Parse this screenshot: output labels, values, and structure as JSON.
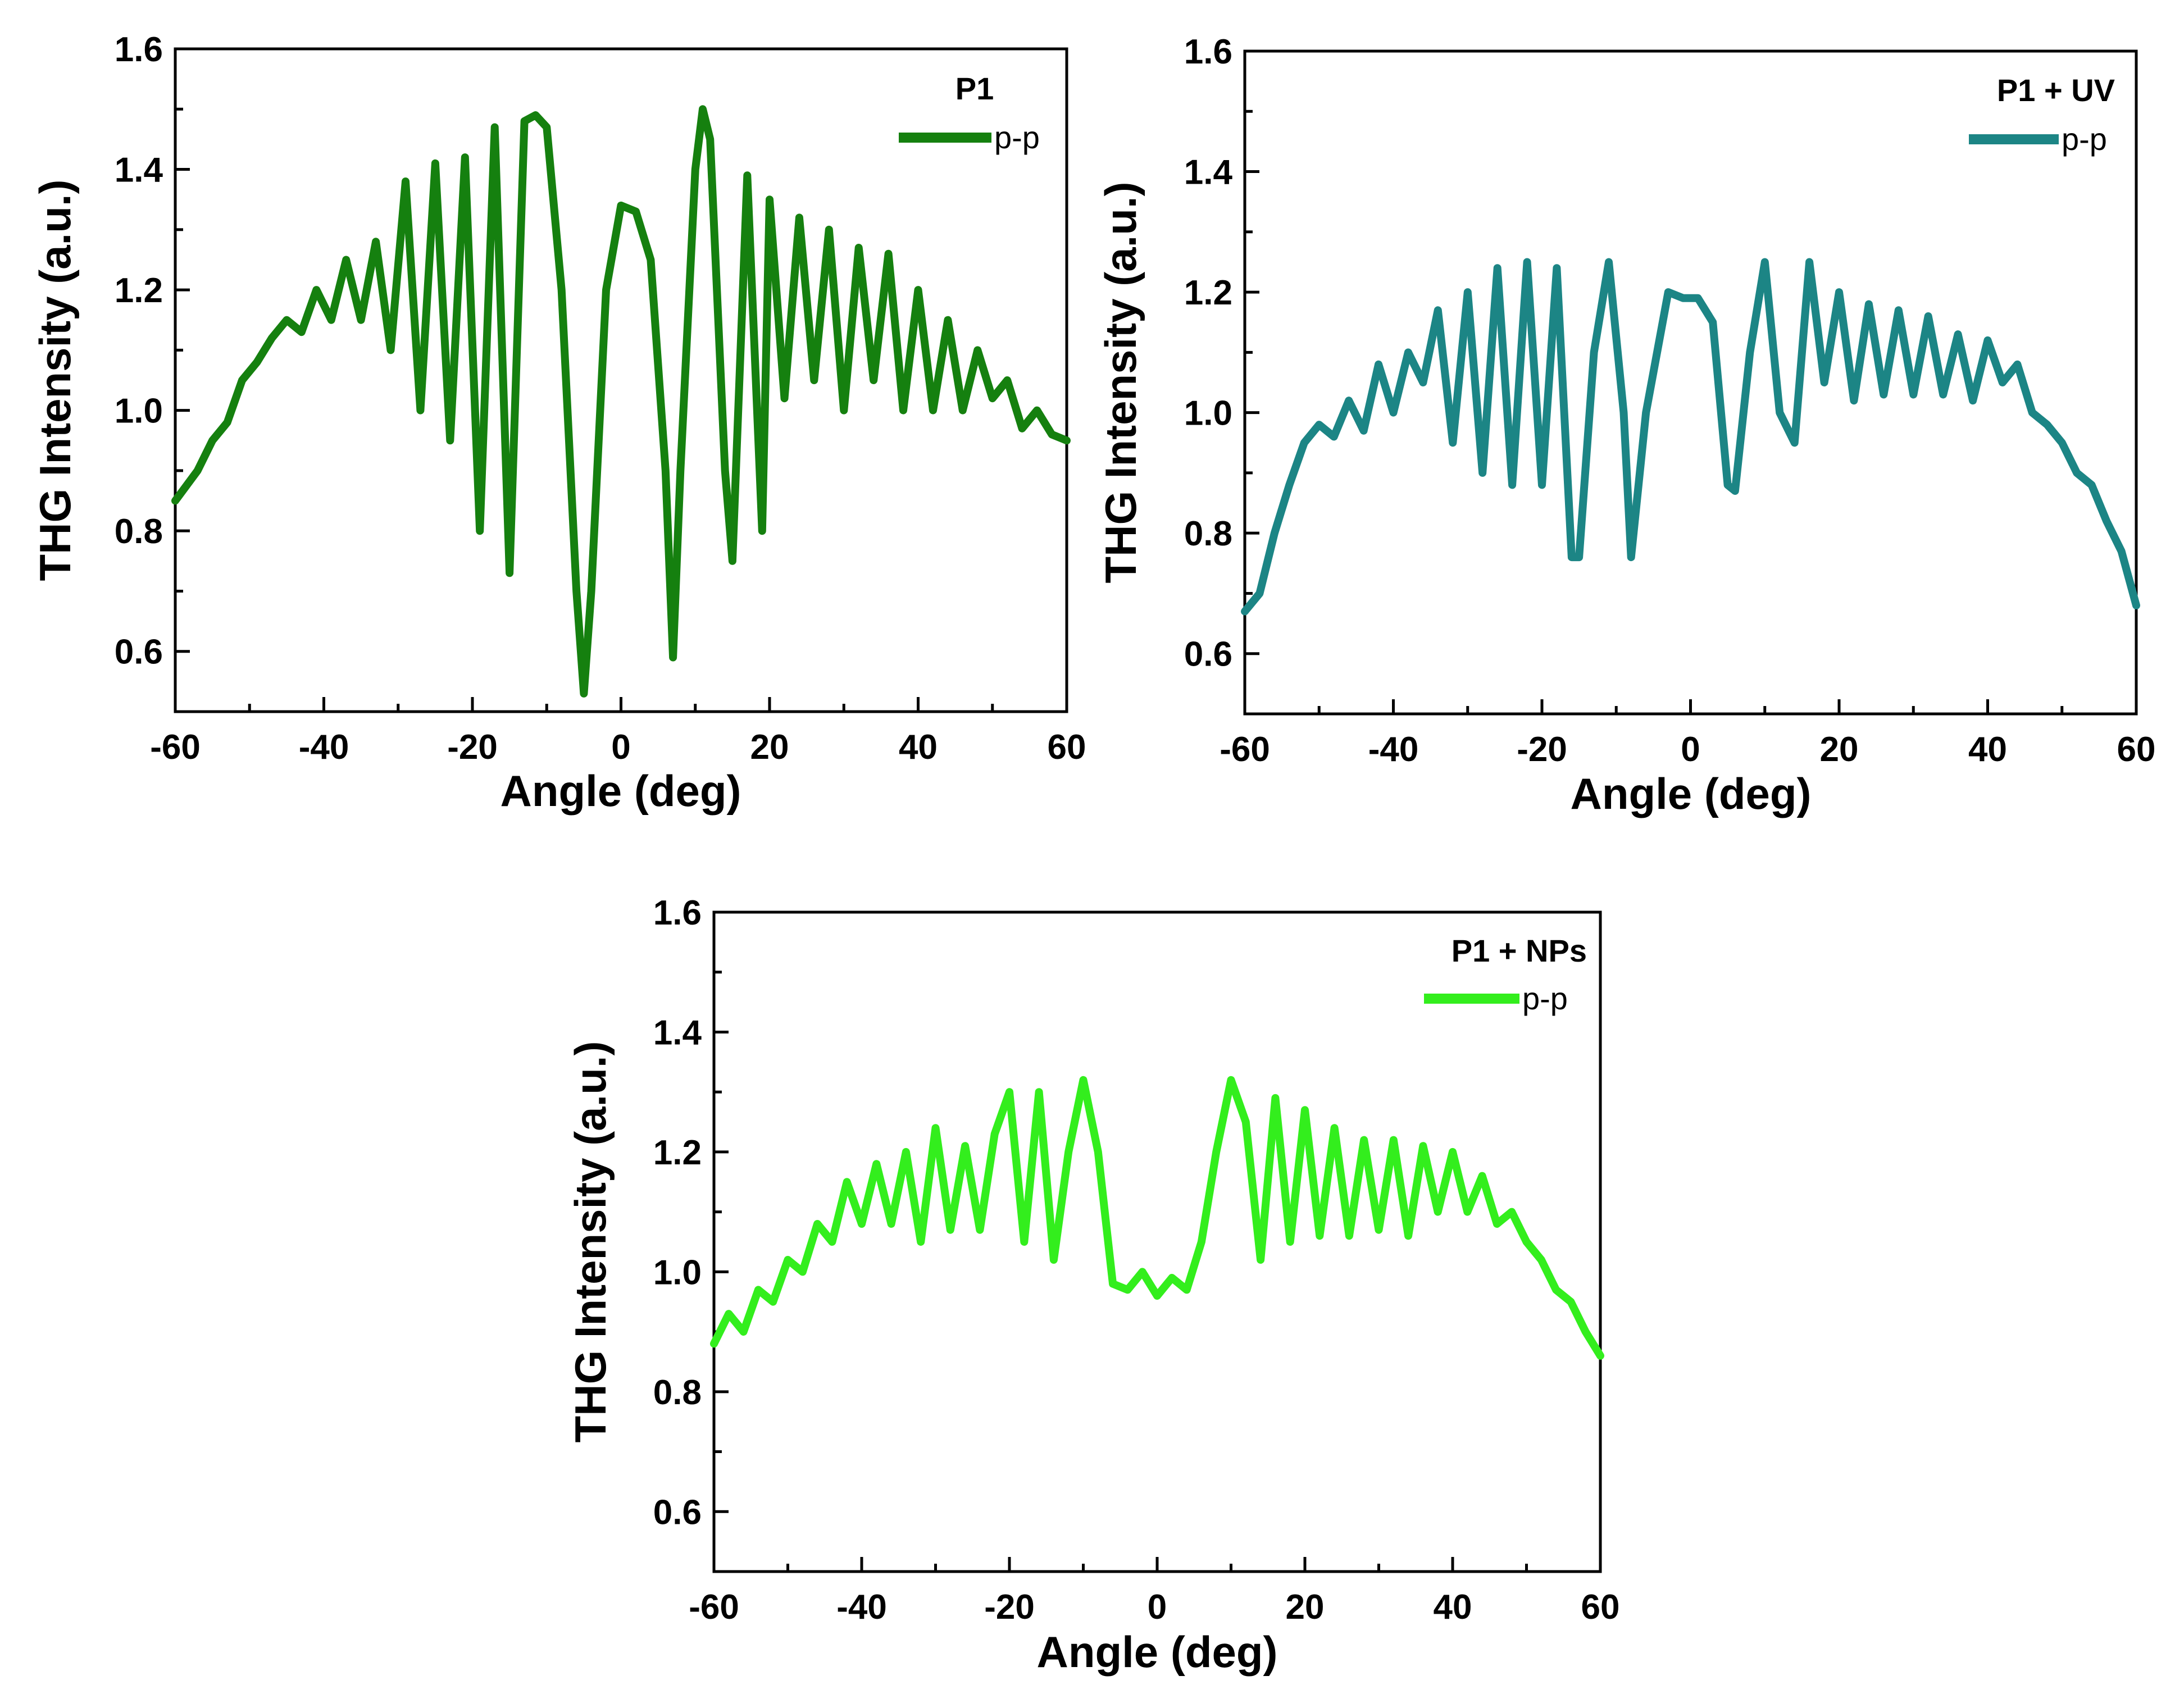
{
  "chart_data": [
    {
      "type": "line",
      "title": "P1",
      "xlabel": "Angle (deg)",
      "ylabel": "THG Intensity (a.u.)",
      "xlim": [
        -60,
        60
      ],
      "ylim": [
        0.5,
        1.6
      ],
      "xticks": [
        -60,
        -40,
        -20,
        0,
        20,
        40,
        60
      ],
      "xtick_labels": [
        "-60",
        "-40",
        "-20",
        "0",
        "20",
        "40",
        "60"
      ],
      "yticks": [
        0.6,
        0.8,
        1.0,
        1.2,
        1.4,
        1.6
      ],
      "ytick_labels": [
        "0.6",
        "0.8",
        "1.0",
        "1.2",
        "1.4",
        "1.6"
      ],
      "legend": {
        "title": "P1",
        "position": "top-right"
      },
      "series": [
        {
          "name": "p-p",
          "color": "#15800f",
          "x": [
            -60,
            -57,
            -55,
            -53,
            -51,
            -49,
            -47,
            -45,
            -43,
            -41,
            -39,
            -37,
            -35,
            -33,
            -31,
            -29,
            -27,
            -25,
            -23,
            -21,
            -19,
            -17,
            -15,
            -13,
            -11.5,
            -10,
            -8,
            -6,
            -5,
            -4,
            -2,
            0,
            2,
            4,
            6,
            7,
            8,
            10,
            11,
            12,
            14,
            15,
            17,
            19,
            20,
            22,
            24,
            26,
            28,
            30,
            32,
            34,
            36,
            38,
            40,
            42,
            44,
            46,
            48,
            50,
            52,
            54,
            56,
            58,
            60
          ],
          "values": [
            0.85,
            0.9,
            0.95,
            0.98,
            1.05,
            1.08,
            1.12,
            1.15,
            1.13,
            1.2,
            1.15,
            1.25,
            1.15,
            1.28,
            1.1,
            1.38,
            1.0,
            1.41,
            0.95,
            1.42,
            0.8,
            1.47,
            0.73,
            1.48,
            1.49,
            1.47,
            1.2,
            0.7,
            0.53,
            0.7,
            1.2,
            1.34,
            1.33,
            1.25,
            0.9,
            0.59,
            0.9,
            1.4,
            1.5,
            1.45,
            0.9,
            0.75,
            1.39,
            0.8,
            1.35,
            1.02,
            1.32,
            1.05,
            1.3,
            1.0,
            1.27,
            1.05,
            1.26,
            1.0,
            1.2,
            1.0,
            1.15,
            1.0,
            1.1,
            1.02,
            1.05,
            0.97,
            1.0,
            0.96,
            0.95
          ]
        }
      ]
    },
    {
      "type": "line",
      "title": "P1 + UV",
      "xlabel": "Angle (deg)",
      "ylabel": "THG Intensity (a.u.)",
      "xlim": [
        -60,
        60
      ],
      "ylim": [
        0.5,
        1.6
      ],
      "xticks": [
        -60,
        -40,
        -20,
        0,
        20,
        40,
        60
      ],
      "xtick_labels": [
        "-60",
        "-40",
        "-20",
        "0",
        "20",
        "40",
        "60"
      ],
      "yticks": [
        0.6,
        0.8,
        1.0,
        1.2,
        1.4,
        1.6
      ],
      "ytick_labels": [
        "0.6",
        "0.8",
        "1.0",
        "1.2",
        "1.4",
        "1.6"
      ],
      "legend": {
        "title": "P1 + UV",
        "position": "top-right"
      },
      "series": [
        {
          "name": "p-p",
          "color": "#1c8585",
          "x": [
            -60,
            -58,
            -56,
            -54,
            -52,
            -50,
            -48,
            -46,
            -44,
            -42,
            -40,
            -38,
            -36,
            -34,
            -32,
            -30,
            -28,
            -26,
            -24,
            -22,
            -20,
            -18,
            -16,
            -15,
            -13,
            -11,
            -9,
            -8,
            -6,
            -3,
            -1,
            1,
            3,
            5,
            6,
            8,
            10,
            12,
            14,
            16,
            18,
            20,
            22,
            24,
            26,
            28,
            30,
            32,
            34,
            36,
            38,
            40,
            42,
            44,
            46,
            48,
            50,
            52,
            54,
            56,
            58,
            60
          ],
          "values": [
            0.67,
            0.7,
            0.8,
            0.88,
            0.95,
            0.98,
            0.96,
            1.02,
            0.97,
            1.08,
            1.0,
            1.1,
            1.05,
            1.17,
            0.95,
            1.2,
            0.9,
            1.24,
            0.88,
            1.25,
            0.88,
            1.24,
            0.76,
            0.76,
            1.1,
            1.25,
            1.0,
            0.76,
            1.0,
            1.2,
            1.19,
            1.19,
            1.15,
            0.88,
            0.87,
            1.1,
            1.25,
            1.0,
            0.95,
            1.25,
            1.05,
            1.2,
            1.02,
            1.18,
            1.03,
            1.17,
            1.03,
            1.16,
            1.03,
            1.13,
            1.02,
            1.12,
            1.05,
            1.08,
            1.0,
            0.98,
            0.95,
            0.9,
            0.88,
            0.82,
            0.77,
            0.68
          ]
        }
      ]
    },
    {
      "type": "line",
      "title": "P1 + NPs",
      "xlabel": "Angle (deg)",
      "ylabel": "THG Intensity (a.u.)",
      "xlim": [
        -60,
        60
      ],
      "ylim": [
        0.5,
        1.6
      ],
      "xticks": [
        -60,
        -40,
        -20,
        0,
        20,
        40,
        60
      ],
      "xtick_labels": [
        "-60",
        "-40",
        "-20",
        "0",
        "20",
        "40",
        "60"
      ],
      "yticks": [
        0.6,
        0.8,
        1.0,
        1.2,
        1.4,
        1.6
      ],
      "ytick_labels": [
        "0.6",
        "0.8",
        "1.0",
        "1.2",
        "1.4",
        "1.6"
      ],
      "legend": {
        "title": "P1 + NPs",
        "position": "top-right"
      },
      "series": [
        {
          "name": "p-p",
          "color": "#33ee1d",
          "x": [
            -60,
            -58,
            -56,
            -54,
            -52,
            -50,
            -48,
            -46,
            -44,
            -42,
            -40,
            -38,
            -36,
            -34,
            -32,
            -30,
            -28,
            -26,
            -24,
            -22,
            -20,
            -18,
            -16,
            -14,
            -12,
            -10,
            -8,
            -6,
            -4,
            -2,
            0,
            2,
            4,
            6,
            8,
            10,
            12,
            14,
            16,
            18,
            20,
            22,
            24,
            26,
            28,
            30,
            32,
            34,
            36,
            38,
            40,
            42,
            44,
            46,
            48,
            50,
            52,
            54,
            56,
            58,
            60
          ],
          "values": [
            0.88,
            0.93,
            0.9,
            0.97,
            0.95,
            1.02,
            1.0,
            1.08,
            1.05,
            1.15,
            1.08,
            1.18,
            1.08,
            1.2,
            1.05,
            1.24,
            1.07,
            1.21,
            1.07,
            1.23,
            1.3,
            1.05,
            1.3,
            1.02,
            1.2,
            1.32,
            1.2,
            0.98,
            0.97,
            1.0,
            0.96,
            0.99,
            0.97,
            1.05,
            1.2,
            1.32,
            1.25,
            1.02,
            1.29,
            1.05,
            1.27,
            1.06,
            1.24,
            1.06,
            1.22,
            1.07,
            1.22,
            1.06,
            1.21,
            1.1,
            1.2,
            1.1,
            1.16,
            1.08,
            1.1,
            1.05,
            1.02,
            0.97,
            0.95,
            0.9,
            0.86
          ]
        }
      ]
    }
  ]
}
